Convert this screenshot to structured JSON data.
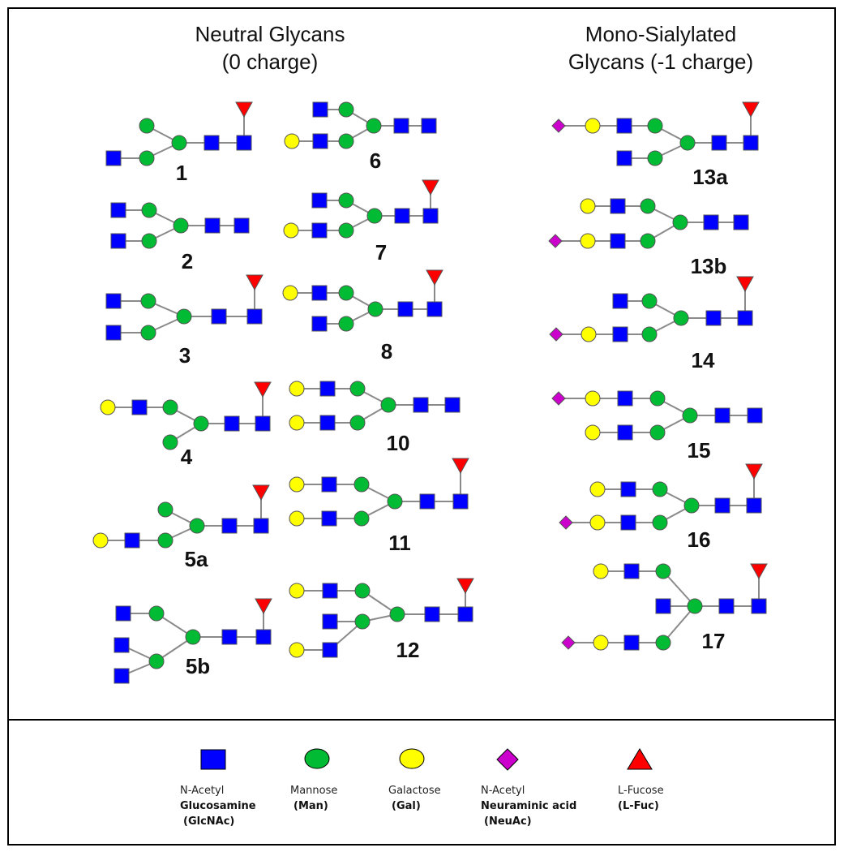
{
  "headers": {
    "neutral_line1": "Neutral Glycans",
    "neutral_line2": "(0 charge)",
    "sialylated_line1": "Mono-Sialylated",
    "sialylated_line2": "Glycans (-1 charge)"
  },
  "colors": {
    "glcnac": "#0000ff",
    "mannose": "#00bb33",
    "galactose": "#ffff00",
    "neuac": "#cc00cc",
    "fucose": "#ff0000"
  },
  "glycan_labels": [
    "1",
    "2",
    "3",
    "4",
    "5a",
    "5b",
    "6",
    "7",
    "8",
    "10",
    "11",
    "12",
    "13a",
    "13b",
    "14",
    "15",
    "16",
    "17"
  ],
  "legend": [
    {
      "symbol": "glcnac-square-icon",
      "line1": "N-Acetyl",
      "line2": "Glucosamine",
      "line3": "(GlcNAc)"
    },
    {
      "symbol": "mannose-circle-icon",
      "line1": "Mannose",
      "line2": "(Man)",
      "line3": ""
    },
    {
      "symbol": "galactose-circle-icon",
      "line1": "Galactose",
      "line2": "(Gal)",
      "line3": ""
    },
    {
      "symbol": "neuac-diamond-icon",
      "line1": "N-Acetyl",
      "line2": "Neuraminic acid",
      "line3": "(NeuAc)"
    },
    {
      "symbol": "fucose-triangle-icon",
      "line1": "L-Fucose",
      "line2": "(L-Fuc)",
      "line3": ""
    }
  ]
}
